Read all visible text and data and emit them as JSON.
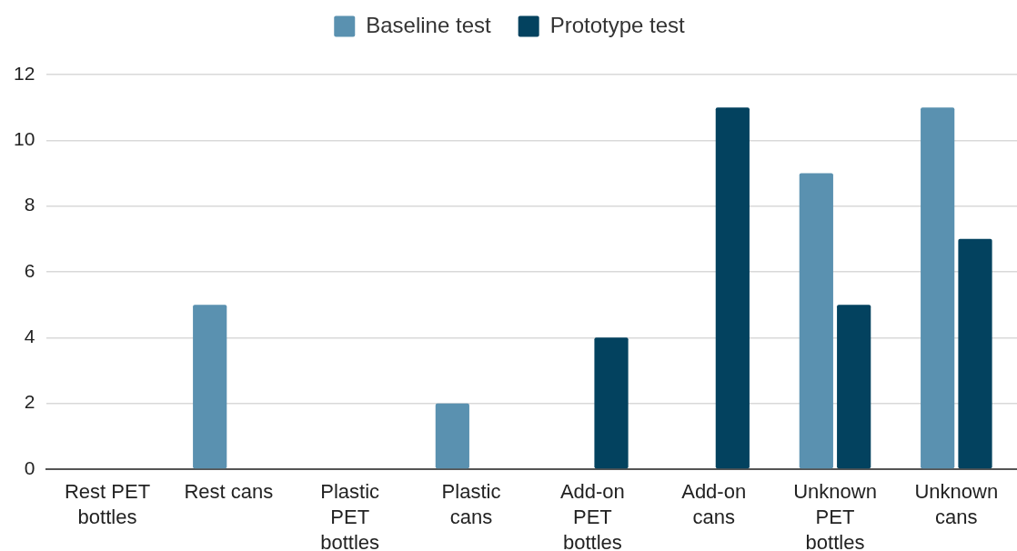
{
  "chart_data": {
    "type": "bar",
    "categories": [
      "Rest PET bottles",
      "Rest cans",
      "Plastic PET bottles",
      "Plastic cans",
      "Add-on PET bottles",
      "Add-on cans",
      "Unknown PET bottles",
      "Unknown cans"
    ],
    "series": [
      {
        "name": "Baseline test",
        "color": "#5a91b0",
        "values": [
          0,
          5,
          0,
          2,
          0,
          0,
          9,
          11
        ]
      },
      {
        "name": "Prototype test",
        "color": "#03425f",
        "values": [
          0,
          0,
          0,
          0,
          4,
          11,
          5,
          7
        ]
      }
    ],
    "ylim": [
      0,
      12
    ],
    "yticks": [
      0,
      2,
      4,
      6,
      8,
      10,
      12
    ],
    "grid": "y",
    "legend": "top"
  }
}
